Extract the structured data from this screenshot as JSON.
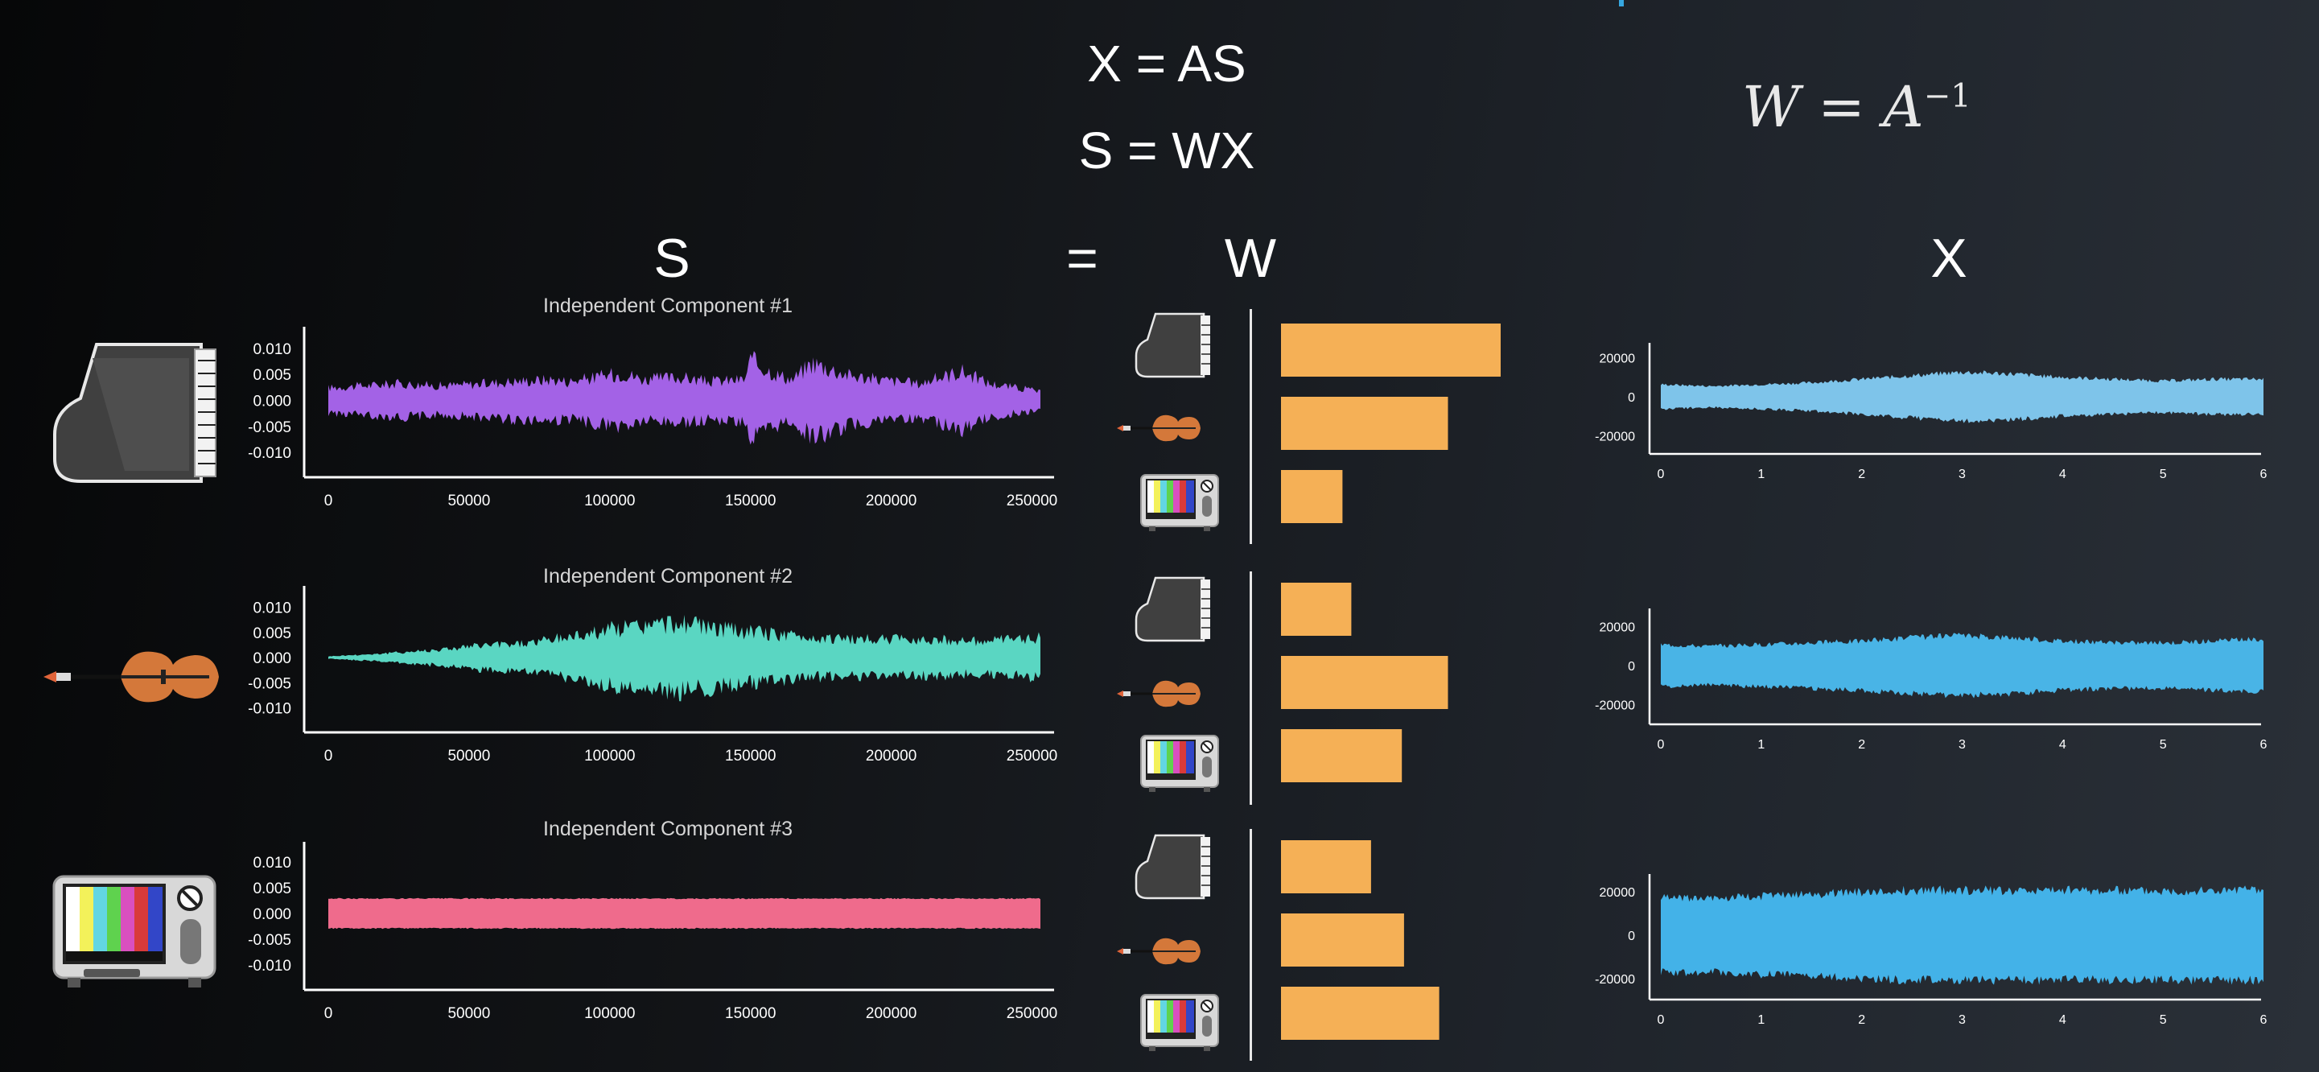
{
  "equations": {
    "line1": "X = AS",
    "line2": "S = WX"
  },
  "formula": {
    "lhs": "W",
    "eq": "=",
    "base": "A",
    "exponent": "−1"
  },
  "headers": {
    "s": "S",
    "equals": "=",
    "w": "W",
    "x": "X"
  },
  "icons": {
    "piano": "piano-icon",
    "violin": "violin-icon",
    "tv": "tv-icon"
  },
  "colors": {
    "component1": "#a362e6",
    "component2": "#5ad6c2",
    "component3": "#ef6b8c",
    "weights": "#f5b056",
    "mixtures": [
      "#7ec4ea",
      "#49b4e6",
      "#43b2e8"
    ],
    "axis": "#ffffff"
  },
  "chart_data": [
    {
      "type": "area",
      "title": "Independent Component #1",
      "x_ticks": [
        "0",
        "50000",
        "100000",
        "150000",
        "200000",
        "250000"
      ],
      "y_ticks": [
        "0.010",
        "0.005",
        "0.000",
        "-0.005",
        "-0.010"
      ],
      "xlim": [
        0,
        255000
      ],
      "ylim": [
        -0.012,
        0.012
      ],
      "envelope": {
        "x": [
          0,
          25000,
          40000,
          55000,
          65000,
          80000,
          85000,
          105000,
          112000,
          125000,
          135000,
          148000,
          150000,
          160000,
          165000,
          172000,
          185000,
          195000,
          210000,
          225000,
          235000,
          250000,
          253000
        ],
        "y": [
          0.003,
          0.004,
          0.0035,
          0.004,
          0.0045,
          0.005,
          0.0045,
          0.0065,
          0.005,
          0.0055,
          0.0045,
          0.005,
          0.0095,
          0.006,
          0.005,
          0.009,
          0.006,
          0.005,
          0.004,
          0.007,
          0.004,
          0.0025,
          0.002
        ]
      }
    },
    {
      "type": "area",
      "title": "Independent Component #2",
      "x_ticks": [
        "0",
        "50000",
        "100000",
        "150000",
        "200000",
        "250000"
      ],
      "y_ticks": [
        "0.010",
        "0.005",
        "0.000",
        "-0.005",
        "-0.010"
      ],
      "xlim": [
        0,
        255000
      ],
      "ylim": [
        -0.012,
        0.012
      ],
      "envelope": {
        "x": [
          0,
          20000,
          40000,
          55000,
          70000,
          85000,
          100000,
          115000,
          125000,
          140000,
          155000,
          170000,
          185000,
          200000,
          215000,
          230000,
          245000,
          253000
        ],
        "y": [
          0.0003,
          0.001,
          0.002,
          0.003,
          0.0035,
          0.005,
          0.007,
          0.008,
          0.0085,
          0.007,
          0.006,
          0.005,
          0.0045,
          0.0045,
          0.0045,
          0.004,
          0.0045,
          0.005
        ]
      }
    },
    {
      "type": "area",
      "title": "Independent Component #3",
      "x_ticks": [
        "0",
        "50000",
        "100000",
        "150000",
        "200000",
        "250000"
      ],
      "y_ticks": [
        "0.010",
        "0.005",
        "0.000",
        "-0.005",
        "-0.010"
      ],
      "xlim": [
        0,
        255000
      ],
      "ylim": [
        -0.012,
        0.012
      ],
      "envelope": {
        "x": [
          0,
          253000
        ],
        "y": [
          0.003,
          0.003
        ]
      }
    },
    {
      "type": "bar",
      "title": "",
      "categories": [
        "piano",
        "violin",
        "tv"
      ],
      "series": [
        {
          "values": [
            1.0,
            0.76,
            0.28
          ]
        },
        {
          "values": [
            0.32,
            0.76,
            0.55
          ]
        },
        {
          "values": [
            0.41,
            0.56,
            0.72
          ]
        }
      ]
    },
    {
      "type": "area",
      "title": "",
      "x_ticks": [
        "0",
        "1",
        "2",
        "3",
        "4",
        "5",
        "6"
      ],
      "y_ticks": [
        "20000",
        "0",
        "-20000"
      ],
      "xlim": [
        0,
        6
      ],
      "ylim": [
        -26000,
        26000
      ],
      "envelope": [
        {
          "x": [
            0,
            0.5,
            1,
            1.5,
            2,
            2.5,
            3,
            3.5,
            4,
            4.5,
            5,
            5.5,
            6
          ],
          "y": [
            7000,
            6000,
            7000,
            8000,
            10000,
            12000,
            14000,
            13000,
            11000,
            10000,
            9000,
            10000,
            10000
          ]
        },
        {
          "x": [
            0,
            0.5,
            1,
            1.5,
            2,
            2.5,
            3,
            3.5,
            4,
            4.5,
            5,
            5.5,
            6
          ],
          "y": [
            12000,
            11000,
            12000,
            13000,
            14000,
            16000,
            17000,
            16000,
            14000,
            13000,
            13000,
            14000,
            15000
          ]
        },
        {
          "x": [
            0,
            0.5,
            1,
            1.5,
            2,
            2.5,
            3,
            3.5,
            4,
            4.5,
            5,
            5.5,
            6
          ],
          "y": [
            19000,
            19000,
            20000,
            21000,
            22000,
            23000,
            23000,
            23000,
            23000,
            23000,
            23000,
            23000,
            23000
          ]
        }
      ]
    }
  ]
}
